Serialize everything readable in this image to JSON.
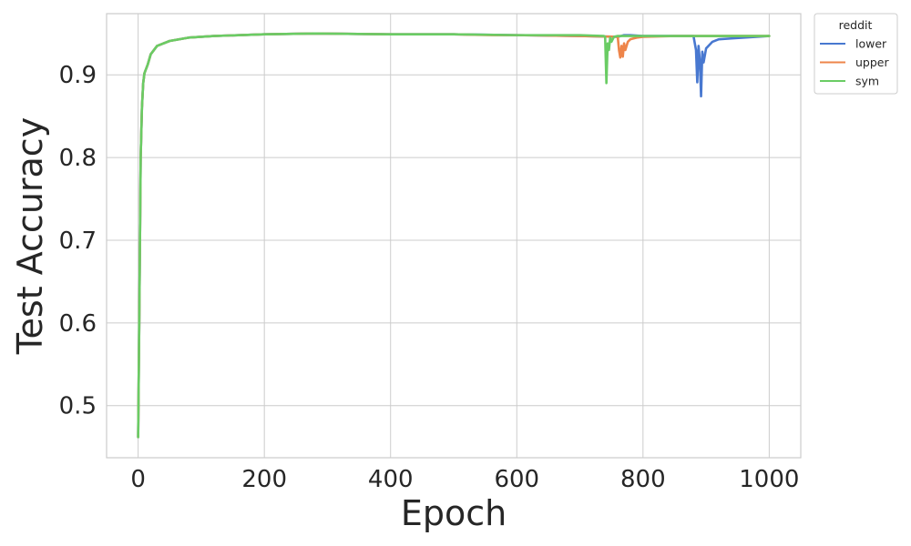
{
  "chart_data": {
    "type": "line",
    "xlabel": "Epoch",
    "ylabel": "Test Accuracy",
    "xlim": [
      -50,
      1050
    ],
    "ylim": [
      0.437,
      0.974
    ],
    "xticks": [
      0,
      200,
      400,
      600,
      800,
      1000
    ],
    "yticks": [
      0.5,
      0.6,
      0.7,
      0.8,
      0.9
    ],
    "xtick_labels": [
      "0",
      "200",
      "400",
      "600",
      "800",
      "1000"
    ],
    "ytick_labels": [
      "0.5",
      "0.6",
      "0.7",
      "0.8",
      "0.9"
    ],
    "grid": true,
    "legend": {
      "title": "reddit",
      "placement": "outside top-right"
    },
    "series": [
      {
        "name": "lower",
        "color": "#4878d0",
        "x": [
          0,
          2,
          4,
          6,
          8,
          10,
          15,
          20,
          30,
          50,
          80,
          120,
          200,
          280,
          400,
          500,
          600,
          700,
          760,
          770,
          780,
          800,
          860,
          880,
          884,
          886,
          888,
          890,
          892,
          894,
          896,
          900,
          910,
          920,
          940,
          960,
          1000
        ],
        "y": [
          0.462,
          0.62,
          0.8,
          0.86,
          0.89,
          0.902,
          0.912,
          0.925,
          0.935,
          0.941,
          0.945,
          0.947,
          0.949,
          0.95,
          0.949,
          0.949,
          0.948,
          0.947,
          0.946,
          0.948,
          0.948,
          0.947,
          0.947,
          0.947,
          0.93,
          0.891,
          0.935,
          0.918,
          0.874,
          0.928,
          0.915,
          0.932,
          0.94,
          0.943,
          0.944,
          0.945,
          0.947
        ]
      },
      {
        "name": "upper",
        "color": "#ee854a",
        "x": [
          0,
          2,
          4,
          6,
          8,
          10,
          15,
          20,
          30,
          50,
          80,
          120,
          200,
          280,
          400,
          500,
          560,
          600,
          700,
          760,
          762,
          764,
          766,
          768,
          770,
          772,
          776,
          780,
          790,
          800,
          850,
          900,
          1000
        ],
        "y": [
          0.462,
          0.62,
          0.8,
          0.86,
          0.89,
          0.902,
          0.912,
          0.925,
          0.935,
          0.941,
          0.945,
          0.947,
          0.949,
          0.95,
          0.949,
          0.949,
          0.948,
          0.948,
          0.947,
          0.946,
          0.93,
          0.921,
          0.935,
          0.922,
          0.938,
          0.93,
          0.94,
          0.943,
          0.945,
          0.946,
          0.947,
          0.947,
          0.947
        ]
      },
      {
        "name": "sym",
        "color": "#6acc64",
        "x": [
          0,
          2,
          4,
          6,
          8,
          10,
          15,
          20,
          30,
          50,
          80,
          120,
          200,
          280,
          400,
          500,
          600,
          700,
          738,
          740,
          742,
          744,
          746,
          748,
          750,
          754,
          760,
          800,
          900,
          1000
        ],
        "y": [
          0.462,
          0.62,
          0.8,
          0.86,
          0.89,
          0.902,
          0.912,
          0.925,
          0.935,
          0.941,
          0.945,
          0.947,
          0.949,
          0.95,
          0.949,
          0.949,
          0.948,
          0.948,
          0.947,
          0.946,
          0.89,
          0.938,
          0.93,
          0.945,
          0.94,
          0.946,
          0.947,
          0.947,
          0.947,
          0.947
        ]
      }
    ]
  }
}
